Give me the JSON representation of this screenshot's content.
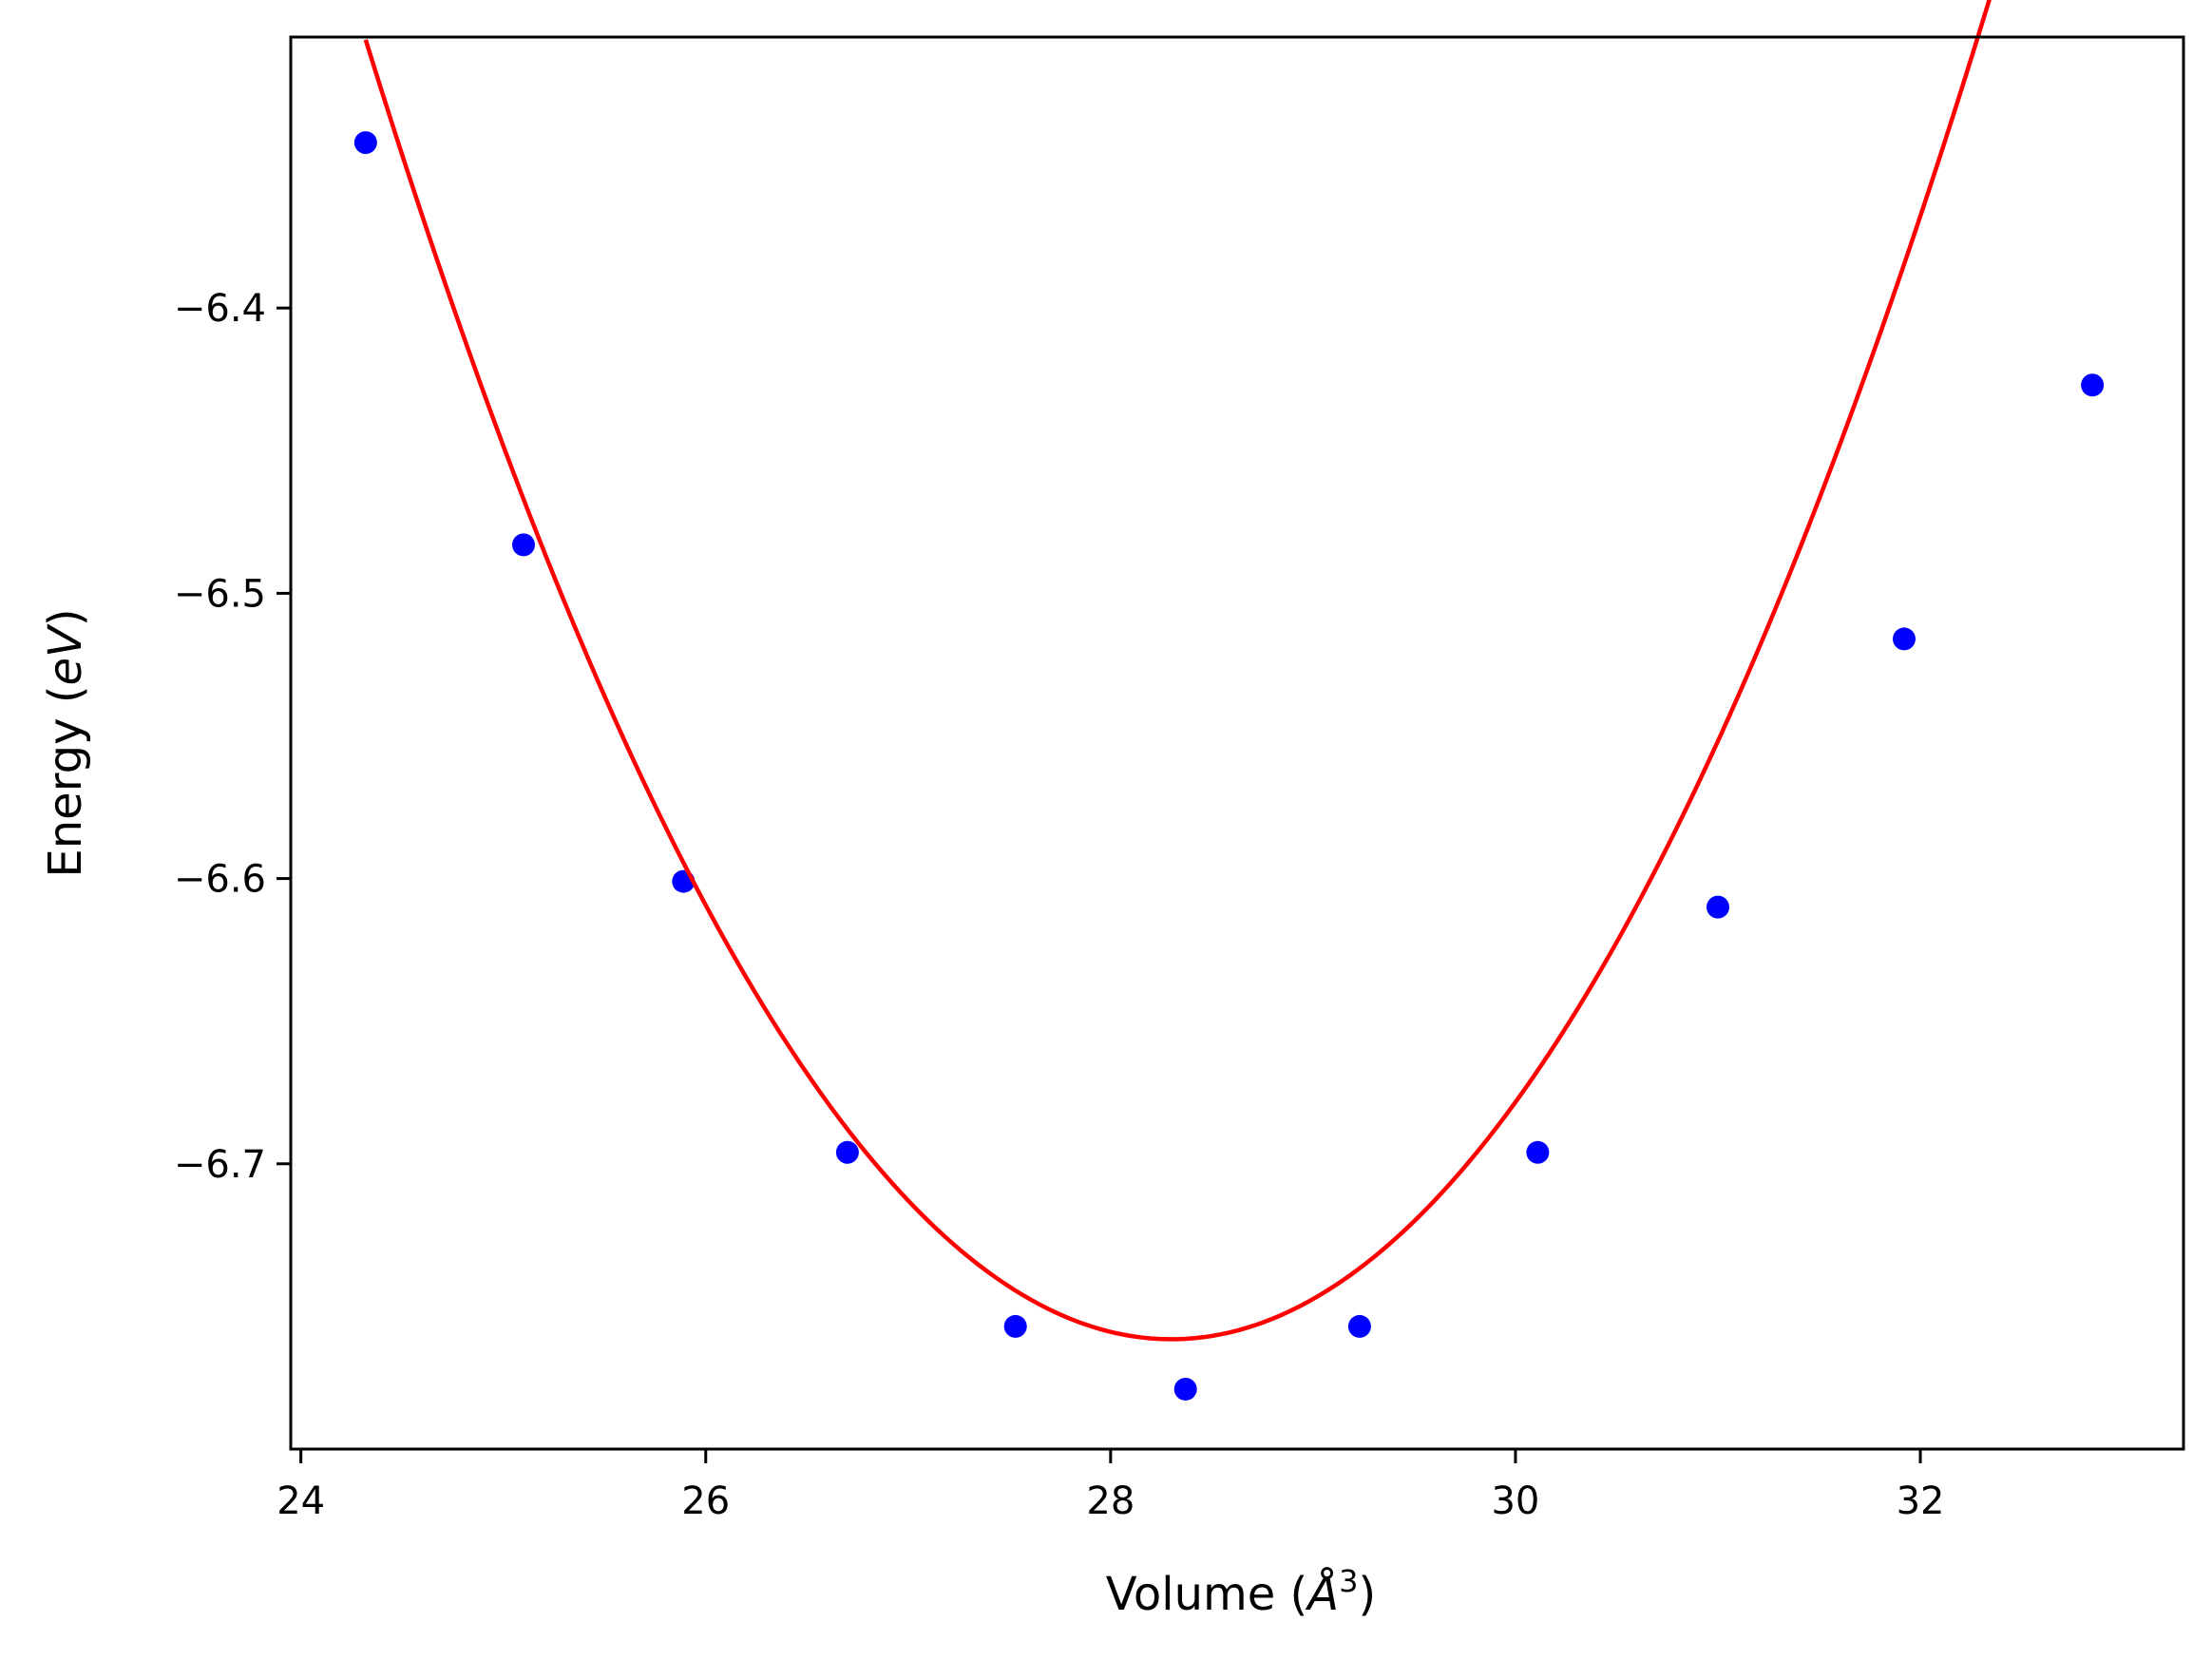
{
  "chart_data": {
    "type": "scatter",
    "xlabel": "Volume (Å³)",
    "xlabel_parts": {
      "prefix": "Volume (",
      "symbol": "Å",
      "sup": "3",
      "suffix": ")"
    },
    "ylabel": "Energy (eV)",
    "ylabel_parts": {
      "prefix": "Energy (",
      "italic": "eV",
      "suffix": ")"
    },
    "xlim": [
      23.95,
      33.3
    ],
    "ylim": [
      -6.8,
      -6.305
    ],
    "xticks": [
      24,
      26,
      28,
      30,
      32
    ],
    "xtick_labels": [
      "24",
      "26",
      "28",
      "30",
      "32"
    ],
    "yticks": [
      -6.4,
      -6.5,
      -6.6,
      -6.7
    ],
    "ytick_labels": [
      "−6.4",
      "−6.5",
      "−6.6",
      "−6.7"
    ],
    "grid": false,
    "legend": "none",
    "series": [
      {
        "kind": "points",
        "color": "#0000ff",
        "x": [
          24.32,
          25.1,
          25.89,
          26.7,
          27.53,
          28.37,
          29.23,
          30.11,
          31.0,
          31.92,
          32.85
        ],
        "y": [
          -6.342,
          -6.483,
          -6.601,
          -6.696,
          -6.757,
          -6.779,
          -6.757,
          -6.696,
          -6.61,
          -6.516,
          -6.427
        ]
      },
      {
        "kind": "fit-line",
        "color": "#ff0000",
        "fit": {
          "a": 0.02876,
          "x0": 28.3,
          "y0": -6.7615,
          "x_from": 24.32,
          "x_to": 32.85
        }
      }
    ]
  }
}
